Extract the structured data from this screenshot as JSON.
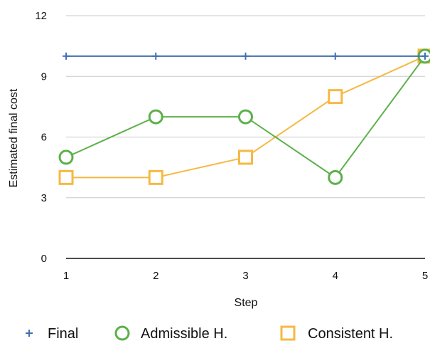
{
  "chart_data": {
    "type": "line",
    "title": "",
    "xlabel": "Step",
    "ylabel": "Estimated final cost",
    "x": [
      1,
      2,
      3,
      4,
      5
    ],
    "x_tick_labels": [
      "1",
      "2",
      "3",
      "4",
      "5"
    ],
    "y_ticks": [
      0,
      3,
      6,
      9,
      12
    ],
    "y_tick_labels": [
      "0",
      "3",
      "6",
      "9",
      "12"
    ],
    "xlim": [
      1,
      5
    ],
    "ylim": [
      0,
      12
    ],
    "grid": "horizontal",
    "legend_position": "bottom",
    "series": [
      {
        "name": "Final",
        "values": [
          10,
          10,
          10,
          10,
          10
        ],
        "color": "#3f6fb5",
        "marker": "plus"
      },
      {
        "name": "Admissible H.",
        "values": [
          5,
          7,
          7,
          4,
          10
        ],
        "color": "#5cb04a",
        "marker": "circle"
      },
      {
        "name": "Consistent H.",
        "values": [
          4,
          4,
          5,
          8,
          10
        ],
        "color": "#f5b942",
        "marker": "square"
      }
    ]
  }
}
